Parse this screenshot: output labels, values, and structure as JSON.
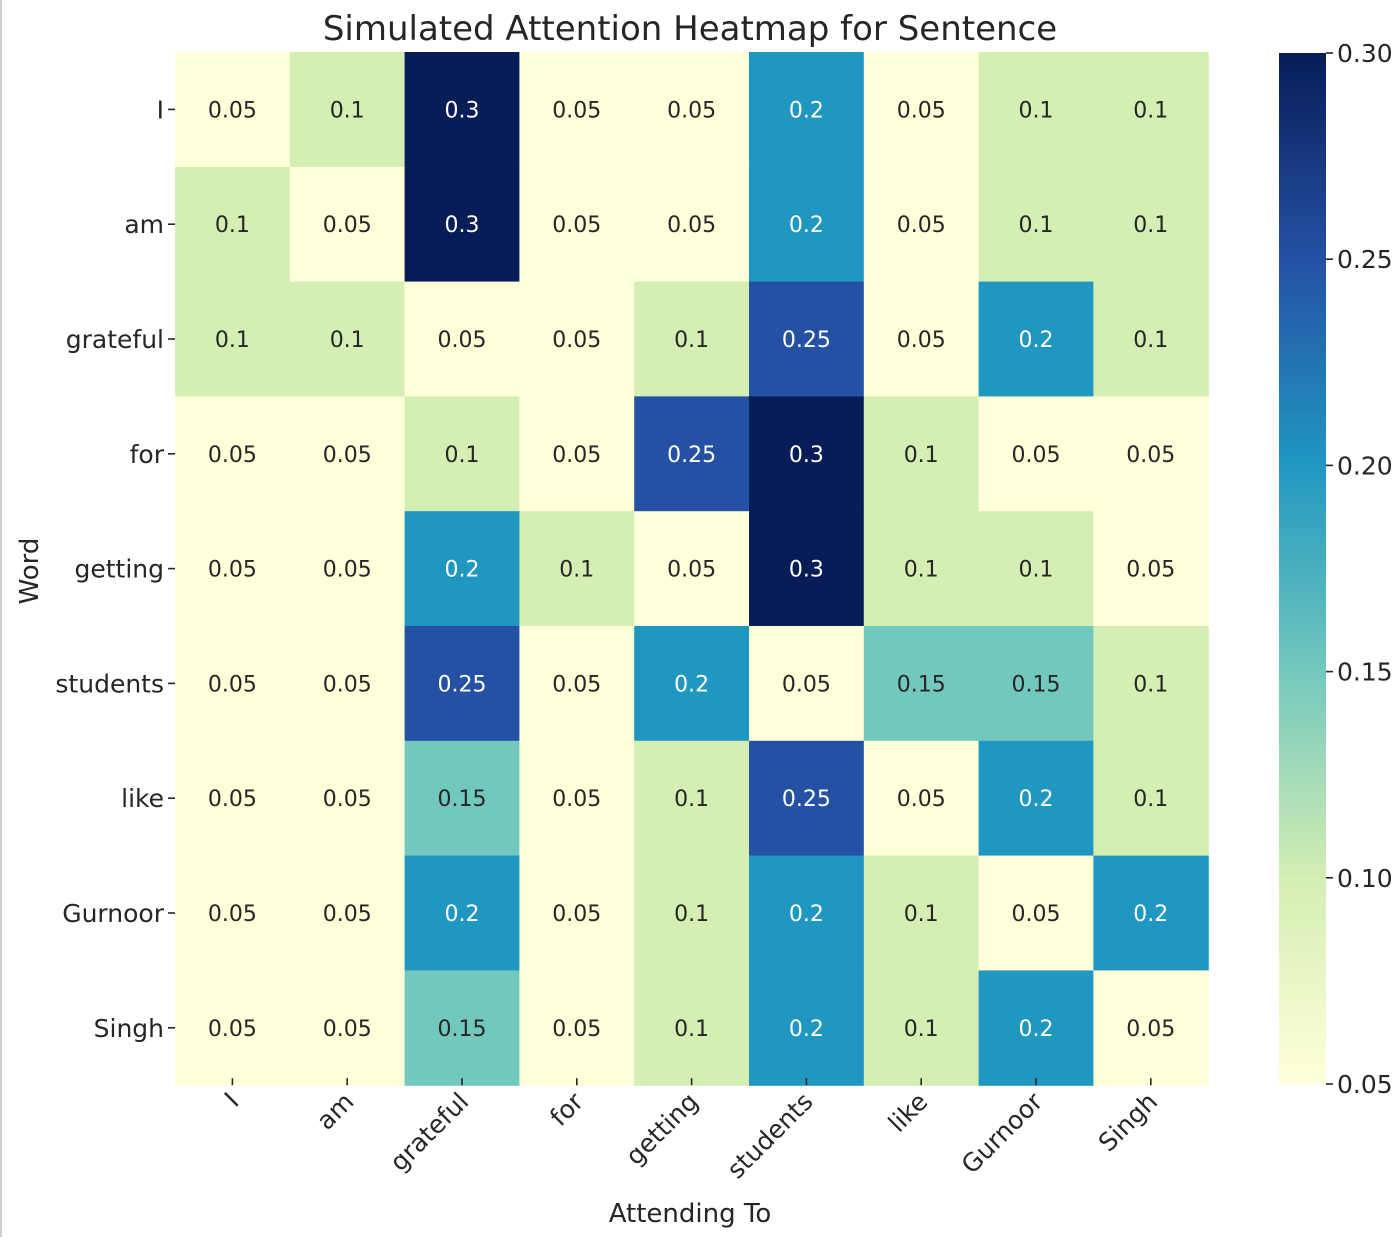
{
  "chart_data": {
    "type": "heatmap",
    "title": "Simulated Attention Heatmap for Sentence",
    "xlabel": "Attending To",
    "ylabel": "Word",
    "x_categories": [
      "I",
      "am",
      "grateful",
      "for",
      "getting",
      "students",
      "like",
      "Gurnoor",
      "Singh"
    ],
    "y_categories": [
      "I",
      "am",
      "grateful",
      "for",
      "getting",
      "students",
      "like",
      "Gurnoor",
      "Singh"
    ],
    "values": [
      [
        0.05,
        0.1,
        0.3,
        0.05,
        0.05,
        0.2,
        0.05,
        0.1,
        0.1
      ],
      [
        0.1,
        0.05,
        0.3,
        0.05,
        0.05,
        0.2,
        0.05,
        0.1,
        0.1
      ],
      [
        0.1,
        0.1,
        0.05,
        0.05,
        0.1,
        0.25,
        0.05,
        0.2,
        0.1
      ],
      [
        0.05,
        0.05,
        0.1,
        0.05,
        0.25,
        0.3,
        0.1,
        0.05,
        0.05
      ],
      [
        0.05,
        0.05,
        0.2,
        0.1,
        0.05,
        0.3,
        0.1,
        0.1,
        0.05
      ],
      [
        0.05,
        0.05,
        0.25,
        0.05,
        0.2,
        0.05,
        0.15,
        0.15,
        0.1
      ],
      [
        0.05,
        0.05,
        0.15,
        0.05,
        0.1,
        0.25,
        0.05,
        0.2,
        0.1
      ],
      [
        0.05,
        0.05,
        0.2,
        0.05,
        0.1,
        0.2,
        0.1,
        0.05,
        0.2
      ],
      [
        0.05,
        0.05,
        0.15,
        0.05,
        0.1,
        0.2,
        0.1,
        0.2,
        0.05
      ]
    ],
    "cell_labels": [
      [
        "0.05",
        "0.1",
        "0.3",
        "0.05",
        "0.05",
        "0.2",
        "0.05",
        "0.1",
        "0.1"
      ],
      [
        "0.1",
        "0.05",
        "0.3",
        "0.05",
        "0.05",
        "0.2",
        "0.05",
        "0.1",
        "0.1"
      ],
      [
        "0.1",
        "0.1",
        "0.05",
        "0.05",
        "0.1",
        "0.25",
        "0.05",
        "0.2",
        "0.1"
      ],
      [
        "0.05",
        "0.05",
        "0.1",
        "0.05",
        "0.25",
        "0.3",
        "0.1",
        "0.05",
        "0.05"
      ],
      [
        "0.05",
        "0.05",
        "0.2",
        "0.1",
        "0.05",
        "0.3",
        "0.1",
        "0.1",
        "0.05"
      ],
      [
        "0.05",
        "0.05",
        "0.25",
        "0.05",
        "0.2",
        "0.05",
        "0.15",
        "0.15",
        "0.1"
      ],
      [
        "0.05",
        "0.05",
        "0.15",
        "0.05",
        "0.1",
        "0.25",
        "0.05",
        "0.2",
        "0.1"
      ],
      [
        "0.05",
        "0.05",
        "0.2",
        "0.05",
        "0.1",
        "0.2",
        "0.1",
        "0.05",
        "0.2"
      ],
      [
        "0.05",
        "0.05",
        "0.15",
        "0.05",
        "0.1",
        "0.2",
        "0.1",
        "0.2",
        "0.05"
      ]
    ],
    "colormap": "YlGnBu",
    "color_range": [
      0.05,
      0.3
    ],
    "colorbar_ticks": [
      0.05,
      0.1,
      0.15,
      0.2,
      0.25,
      0.3
    ],
    "colorbar_tick_labels": [
      "0.05",
      "0.10",
      "0.15",
      "0.20",
      "0.25",
      "0.30"
    ],
    "legend": "colorbar-right",
    "grid": false
  },
  "colors": {
    "level_0.05": "#ffffd9",
    "level_0.10": "#d4eeb3",
    "level_0.15": "#73c8bd",
    "level_0.20": "#2097c1",
    "level_0.25": "#2451a4",
    "level_0.30": "#081d58",
    "text_dark": "#262626",
    "text_light": "#ffffff",
    "axis_text": "#262626"
  }
}
